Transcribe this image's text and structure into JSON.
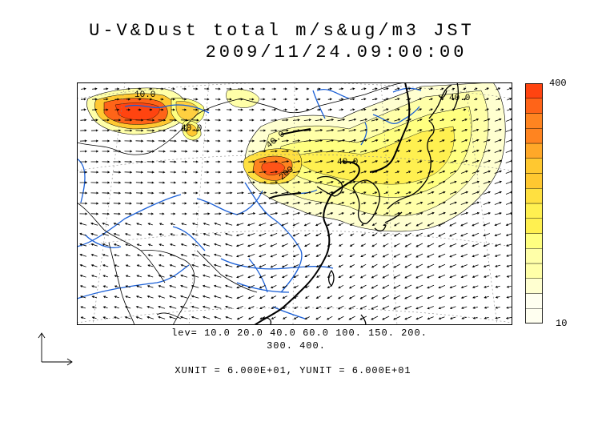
{
  "title": {
    "line1": "U-V&Dust total m/s&ug/m3 JST",
    "line2": "2009/11/24.09:00:00"
  },
  "colorbar": {
    "max_label": "400",
    "min_label": "10",
    "levels": [
      10,
      20,
      40,
      60,
      100,
      150,
      200,
      300,
      400
    ],
    "colors": [
      "#fffff0",
      "#ffffd0",
      "#ffffa8",
      "#ffff80",
      "#fff050",
      "#ffe040",
      "#ffc830",
      "#ffa828",
      "#ff8420",
      "#ff6418",
      "#ff4410"
    ]
  },
  "legend": {
    "lev_line1": "lev= 10.0 20.0 40.0 60.0 100. 150. 200.",
    "lev_line2": "300. 400.",
    "units_line": "XUNIT = 6.000E+01, YUNIT = 6.000E+01"
  },
  "map": {
    "contour_labels": [
      "10.0",
      "40.0",
      "40.0",
      "40.0",
      "40.0",
      "200"
    ],
    "colors": {
      "coast": "#000000",
      "river": "#1a5fd6",
      "wind": "#000000",
      "grid": "#888888"
    }
  }
}
